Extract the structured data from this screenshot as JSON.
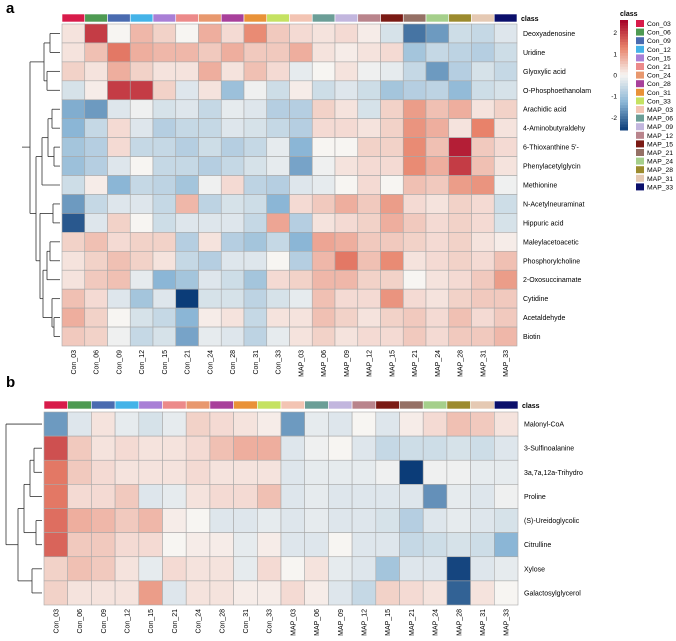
{
  "panels": {
    "a": {
      "label": "a"
    },
    "b": {
      "label": "b"
    }
  },
  "chart_data": [
    {
      "type": "heatmap",
      "panel": "a",
      "class_label": "class",
      "columns": [
        "Con_03",
        "Con_06",
        "Con_09",
        "Con_12",
        "Con_15",
        "Con_21",
        "Con_24",
        "Con_28",
        "Con_31",
        "Con_33",
        "MAP_03",
        "MAP_06",
        "MAP_09",
        "MAP_12",
        "MAP_15",
        "MAP_21",
        "MAP_24",
        "MAP_28",
        "MAP_31",
        "MAP_33"
      ],
      "rows": [
        "Deoxyadenosine",
        "Uridine",
        "Glyoxylic acid",
        "O-Phosphoethanolam",
        "Arachidic acid",
        "4-Aminobutyraldehy",
        "6-Thioxanthine 5'-",
        "Phenylacetylglycin",
        "Methionine",
        "N-Acetylneuraminat",
        "Hippuric acid",
        "Maleylacetoacetic",
        "Phosphorylcholine",
        "2-Oxosuccinamate",
        "Cytidine",
        "Acetaldehyde",
        "Biotin"
      ],
      "values": [
        [
          0.2,
          2.0,
          0.0,
          0.7,
          0.4,
          0.0,
          0.8,
          0.3,
          1.2,
          0.5,
          0.3,
          0.2,
          0.3,
          0.1,
          -0.4,
          -2.0,
          -1.6,
          -0.5,
          -0.6,
          -0.3
        ],
        [
          0.2,
          0.6,
          1.4,
          0.8,
          0.7,
          0.7,
          0.5,
          0.8,
          0.5,
          0.5,
          0.8,
          0.2,
          0.1,
          0.2,
          0.3,
          -1.0,
          -0.6,
          -0.7,
          -0.8,
          -0.5
        ],
        [
          0.4,
          0.2,
          0.8,
          0.4,
          0.2,
          0.2,
          0.8,
          0.2,
          0.6,
          0.3,
          -0.2,
          0.0,
          0.2,
          -0.1,
          -0.2,
          -0.6,
          -1.6,
          -0.8,
          -0.4,
          -0.6
        ],
        [
          -0.4,
          0.1,
          2.0,
          2.0,
          0.4,
          -0.3,
          0.2,
          -1.1,
          -0.1,
          -0.5,
          0.1,
          -0.5,
          -0.3,
          -0.5,
          -1.0,
          -0.8,
          -0.7,
          -1.2,
          -0.5,
          -0.4
        ],
        [
          -1.4,
          -1.6,
          -0.3,
          -0.1,
          -0.4,
          -0.3,
          -0.6,
          -0.2,
          -0.3,
          -0.8,
          -0.8,
          0.4,
          0.2,
          -0.4,
          0.4,
          1.0,
          0.6,
          0.8,
          0.2,
          0.4
        ],
        [
          -1.3,
          -0.6,
          0.3,
          -0.3,
          -0.8,
          -0.6,
          -0.6,
          -0.3,
          -0.4,
          -0.6,
          -0.8,
          0.3,
          0.3,
          0.2,
          0.4,
          1.1,
          0.8,
          0.2,
          1.3,
          0.2
        ],
        [
          -1.0,
          -0.8,
          0.3,
          -0.6,
          -0.6,
          -0.8,
          -0.5,
          -0.8,
          -0.6,
          -0.2,
          -1.3,
          0.0,
          0.0,
          0.4,
          0.4,
          1.2,
          0.6,
          2.3,
          0.5,
          0.3
        ],
        [
          -1.1,
          -0.8,
          -0.3,
          0.0,
          -0.6,
          -0.6,
          -0.8,
          -0.6,
          -0.4,
          -0.2,
          -1.5,
          -0.1,
          0.2,
          0.3,
          0.3,
          1.2,
          0.8,
          2.0,
          0.6,
          0.2
        ],
        [
          -0.5,
          0.1,
          -1.3,
          -0.6,
          -0.7,
          -1.0,
          -0.1,
          0.3,
          -0.7,
          -0.8,
          -0.3,
          -0.2,
          0.0,
          0.3,
          0.0,
          0.6,
          0.5,
          1.0,
          1.1,
          -0.1
        ],
        [
          -1.6,
          -0.6,
          -0.3,
          -0.3,
          -0.6,
          0.7,
          -0.7,
          -0.4,
          -0.5,
          -1.3,
          0.3,
          0.5,
          0.8,
          0.5,
          1.0,
          0.3,
          0.2,
          0.4,
          0.3,
          -0.5
        ],
        [
          -2.3,
          -0.3,
          0.4,
          0.0,
          -0.5,
          -0.3,
          -0.3,
          -0.3,
          -0.6,
          0.9,
          -0.8,
          0.2,
          0.3,
          0.4,
          0.8,
          0.5,
          0.3,
          0.4,
          0.3,
          -0.4
        ],
        [
          0.4,
          0.6,
          0.3,
          0.4,
          0.4,
          -0.8,
          0.2,
          -0.8,
          -1.0,
          -0.6,
          -1.3,
          0.9,
          0.8,
          0.5,
          0.5,
          0.4,
          0.3,
          0.4,
          0.2,
          0.1
        ],
        [
          0.2,
          0.4,
          0.6,
          0.4,
          0.2,
          -0.6,
          -0.8,
          -0.3,
          -0.3,
          0.0,
          -0.8,
          0.7,
          1.4,
          0.6,
          1.2,
          0.2,
          0.3,
          0.4,
          0.3,
          0.6
        ],
        [
          0.2,
          0.5,
          0.6,
          -0.2,
          -1.3,
          -1.0,
          -0.3,
          -0.5,
          -1.0,
          0.3,
          0.4,
          0.7,
          0.7,
          0.4,
          0.4,
          0.0,
          0.2,
          0.3,
          0.5,
          1.0
        ],
        [
          0.6,
          0.3,
          -0.3,
          -1.0,
          -0.3,
          -2.6,
          -0.4,
          -0.4,
          -0.7,
          -0.4,
          -0.2,
          0.6,
          0.3,
          0.3,
          1.1,
          0.3,
          0.2,
          0.4,
          0.5,
          0.5
        ],
        [
          0.8,
          0.4,
          0.0,
          -0.4,
          -0.6,
          -1.3,
          0.1,
          0.2,
          -0.6,
          0.2,
          0.2,
          0.6,
          0.4,
          0.2,
          0.4,
          0.5,
          0.3,
          0.6,
          0.3,
          0.5
        ],
        [
          0.5,
          0.4,
          -0.1,
          -0.6,
          -0.4,
          -1.5,
          -0.2,
          -0.3,
          -0.7,
          -0.2,
          0.2,
          0.4,
          0.2,
          0.3,
          0.3,
          0.5,
          0.3,
          0.5,
          0.5,
          0.7
        ]
      ],
      "legend": {
        "title": "class",
        "colorbar_ticks": [
          2,
          1,
          0,
          -1,
          -2
        ],
        "colorbar_range": [
          -2.6,
          2.6
        ],
        "items": [
          "Con_03",
          "Con_06",
          "Con_09",
          "Con_12",
          "Con_15",
          "Con_21",
          "Con_24",
          "Con_28",
          "Con_31",
          "Con_33",
          "MAP_03",
          "MAP_06",
          "MAP_09",
          "MAP_12",
          "MAP_15",
          "MAP_21",
          "MAP_24",
          "MAP_28",
          "MAP_31",
          "MAP_33"
        ]
      }
    },
    {
      "type": "heatmap",
      "panel": "b",
      "class_label": "class",
      "columns": [
        "Con_03",
        "Con_06",
        "Con_09",
        "Con_12",
        "Con_15",
        "Con_21",
        "Con_24",
        "Con_28",
        "Con_31",
        "Con_33",
        "MAP_03",
        "MAP_06",
        "MAP_09",
        "MAP_12",
        "MAP_15",
        "MAP_21",
        "MAP_24",
        "MAP_28",
        "MAP_31",
        "MAP_33"
      ],
      "rows": [
        "Malonyl-CoA",
        "3-Sulfinoalanine",
        "3a,7a,12a-Trihydro",
        "Proline",
        "(S)-Ureidoglycolic",
        "Citrulline",
        "Xylose",
        "Galactosylglycerol"
      ],
      "values": [
        [
          -1.6,
          -0.3,
          0.2,
          -0.2,
          -0.4,
          -0.2,
          0.4,
          0.3,
          0.2,
          0.1,
          -1.6,
          -0.2,
          -0.3,
          0.0,
          -0.3,
          0.1,
          0.3,
          0.6,
          0.5,
          0.2
        ],
        [
          1.8,
          0.5,
          0.2,
          0.3,
          0.2,
          0.2,
          0.3,
          0.6,
          0.8,
          0.8,
          -0.3,
          -0.1,
          0.0,
          -0.3,
          -0.6,
          -0.5,
          -0.5,
          -0.4,
          -0.5,
          -0.3
        ],
        [
          1.4,
          0.5,
          0.3,
          0.2,
          0.2,
          0.2,
          0.3,
          0.2,
          0.2,
          0.2,
          -0.3,
          -0.2,
          -0.2,
          -0.2,
          -0.1,
          -2.6,
          -0.1,
          -0.1,
          -0.2,
          -0.2
        ],
        [
          1.4,
          0.3,
          0.3,
          0.5,
          -0.3,
          -0.2,
          0.2,
          0.3,
          0.3,
          0.6,
          -0.3,
          -0.2,
          -0.3,
          -0.3,
          -0.3,
          -0.3,
          -1.7,
          -0.2,
          -0.3,
          -0.1
        ],
        [
          1.5,
          0.8,
          0.7,
          0.5,
          0.7,
          0.1,
          0.0,
          -0.3,
          -0.3,
          -0.2,
          -0.3,
          -0.2,
          -0.3,
          -0.3,
          -0.4,
          -0.8,
          -0.3,
          -0.2,
          -0.3,
          -0.4
        ],
        [
          1.6,
          0.5,
          0.5,
          0.3,
          0.3,
          0.0,
          0.1,
          0.1,
          -0.2,
          0.1,
          -0.3,
          -0.3,
          0.0,
          -0.3,
          -0.3,
          -0.6,
          -0.5,
          -0.4,
          -0.5,
          -1.3
        ],
        [
          0.4,
          0.6,
          0.5,
          0.2,
          -0.2,
          0.3,
          0.2,
          0.2,
          -0.2,
          0.3,
          0.0,
          0.2,
          -0.2,
          -0.3,
          -1.0,
          -0.3,
          -0.3,
          -2.5,
          -0.3,
          -0.2
        ],
        [
          0.4,
          0.2,
          0.2,
          0.2,
          1.0,
          -0.3,
          0.2,
          0.2,
          0.1,
          0.1,
          0.3,
          0.1,
          -0.3,
          -0.6,
          0.4,
          0.3,
          0.2,
          -2.2,
          0.2,
          0.0
        ]
      ]
    }
  ],
  "class_colors": {
    "Con_03": "#d81b4a",
    "Con_06": "#4e9a52",
    "Con_09": "#4a6bb0",
    "Con_12": "#44b3e8",
    "Con_15": "#a97fd6",
    "Con_21": "#ec8a8a",
    "Con_24": "#e8986e",
    "Con_28": "#a8409b",
    "Con_31": "#e99238",
    "Con_33": "#c5e262",
    "MAP_03": "#f3c4b3",
    "MAP_06": "#6b9e97",
    "MAP_09": "#c2b6de",
    "MAP_12": "#b9848c",
    "MAP_15": "#7a1a14",
    "MAP_21": "#957065",
    "MAP_24": "#a5cf8b",
    "MAP_28": "#9c8b2e",
    "MAP_31": "#e5c9b3",
    "MAP_33": "#0b0f6b"
  },
  "colors": {
    "high": "#a50026",
    "mid_high": "#e8826a",
    "mid": "#f7f5f2",
    "mid_low": "#8bb6d6",
    "low": "#0b3c78",
    "grid": "#a8a8a8"
  }
}
